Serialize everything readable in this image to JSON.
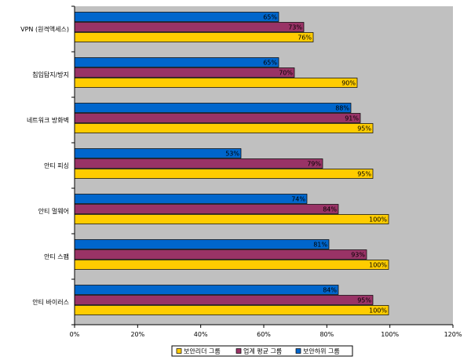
{
  "colors": {
    "plot_bg": "#C0C0C0",
    "gold": "#FFCC00",
    "maroon": "#993366",
    "blue": "#0066CC"
  },
  "chart_data": {
    "type": "bar",
    "orientation": "horizontal",
    "categories": [
      "VPN (원격액세스)",
      "침입탐지/방지",
      "네트워크 방화벽",
      "안티 피싱",
      "안티 멀웨어",
      "안티 스팸",
      "안티 바이러스"
    ],
    "series": [
      {
        "name": "보안리더 그룹",
        "color": "#FFCC00",
        "values": [
          76,
          90,
          95,
          95,
          100,
          100,
          100
        ],
        "labels": [
          "76%",
          "90%",
          "95%",
          "95%",
          "100%",
          "100%",
          "100%"
        ]
      },
      {
        "name": "업계 평균 그룹",
        "color": "#993366",
        "values": [
          73,
          70,
          91,
          79,
          84,
          93,
          95
        ],
        "labels": [
          "73%",
          "70%",
          "91%",
          "79%",
          "84%",
          "93%",
          "95%"
        ]
      },
      {
        "name": "보안하위 그룹",
        "color": "#0066CC",
        "values": [
          65,
          65,
          88,
          53,
          74,
          81,
          84
        ],
        "labels": [
          "65%",
          "65%",
          "88%",
          "53%",
          "74%",
          "81%",
          "84%"
        ]
      }
    ],
    "xlim": [
      0,
      120
    ],
    "xticks": [
      "0%",
      "20%",
      "40%",
      "60%",
      "80%",
      "100%",
      "120%"
    ],
    "grid": false,
    "legend_position": "bottom"
  }
}
